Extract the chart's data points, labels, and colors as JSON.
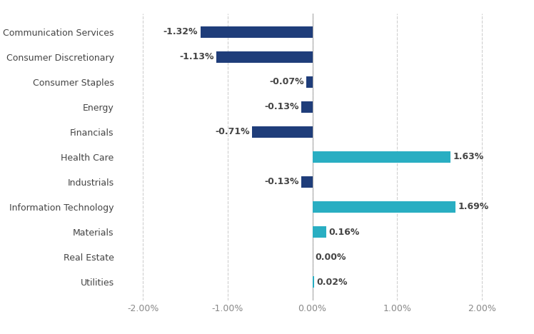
{
  "categories": [
    "Communication Services",
    "Consumer Discretionary",
    "Consumer Staples",
    "Energy",
    "Financials",
    "Health Care",
    "Industrials",
    "Information Technology",
    "Materials",
    "Real Estate",
    "Utilities"
  ],
  "values": [
    -1.32,
    -1.13,
    -0.07,
    -0.13,
    -0.71,
    1.63,
    -0.13,
    1.69,
    0.16,
    0.0,
    0.02
  ],
  "labels": [
    "-1.32%",
    "-1.13%",
    "-0.07%",
    "-0.13%",
    "-0.71%",
    "1.63%",
    "-0.13%",
    "1.69%",
    "0.16%",
    "0.00%",
    "0.02%"
  ],
  "colors_negative": "#1f3d7a",
  "colors_positive": "#29aec2",
  "xlim": [
    -2.3,
    2.3
  ],
  "xticks": [
    -2.0,
    -1.0,
    0.0,
    1.0,
    2.0
  ],
  "xtick_labels": [
    "-2.00%",
    "-1.00%",
    "0.00%",
    "1.00%",
    "2.00%"
  ],
  "background_color": "#ffffff",
  "grid_color": "#d0d0d0",
  "label_fontsize": 9,
  "tick_fontsize": 9,
  "bar_height": 0.45,
  "label_color": "#444444",
  "cat_label_color": "#444444"
}
